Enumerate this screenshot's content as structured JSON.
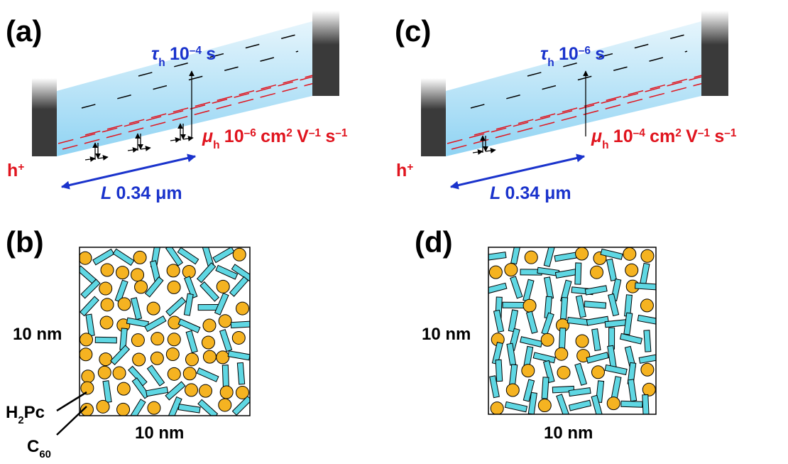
{
  "panels": [
    {
      "label": "(a)",
      "tau": {
        "symbol": "τ",
        "sub": "h",
        "base": "10",
        "exp": "–4",
        "unit": "s"
      },
      "mu": {
        "symbol": "μ",
        "sub": "h",
        "base": "10",
        "exp": "–6",
        "unit": "cm",
        "unit_exp": "2",
        "v": "V",
        "v_exp": "–1",
        "s": "s",
        "s_exp": "–1"
      },
      "hole": {
        "base": "h",
        "exp": "+"
      },
      "length": {
        "symbol": "L",
        "value": "0.34 μm"
      }
    },
    {
      "label": "(c)",
      "tau": {
        "symbol": "τ",
        "sub": "h",
        "base": "10",
        "exp": "–6",
        "unit": "s"
      },
      "mu": {
        "symbol": "μ",
        "sub": "h",
        "base": "10",
        "exp": "–4",
        "unit": "cm",
        "unit_exp": "2",
        "v": "V",
        "v_exp": "–1",
        "s": "s",
        "s_exp": "–1"
      },
      "hole": {
        "base": "h",
        "exp": "+"
      },
      "length": {
        "symbol": "L",
        "value": "0.34 μm"
      }
    }
  ],
  "morphologies": [
    {
      "label": "(b)",
      "height": "10 nm",
      "width": "10 nm",
      "legend": [
        {
          "base": "H",
          "sub": "2",
          "rest": "Pc"
        },
        {
          "base": "C",
          "sub": "60"
        }
      ]
    },
    {
      "label": "(d)",
      "height": "10 nm",
      "width": "10 nm"
    }
  ]
}
